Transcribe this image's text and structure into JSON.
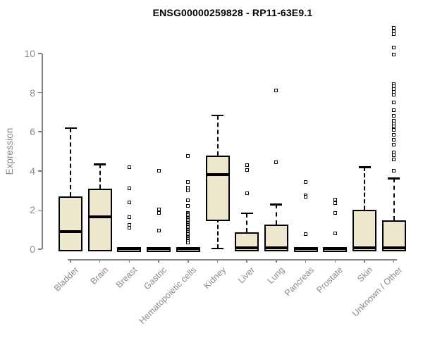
{
  "chart_data": {
    "type": "boxplot",
    "title": "ENSG00000259828 - RP11-63E9.1",
    "ylabel": "Expression",
    "xlabel": "",
    "yticks": [
      0,
      2,
      4,
      6,
      8,
      10
    ],
    "ylim": [
      0,
      11.5
    ],
    "legend": "none",
    "grid": false,
    "categories": [
      {
        "label": "Bladder",
        "box": {
          "q1": 0.05,
          "median": 0.9,
          "q3": 2.7,
          "whisker_low": null,
          "whisker_high": 6.2
        },
        "outliers": []
      },
      {
        "label": "Brain",
        "box": {
          "q1": 0.05,
          "median": 1.65,
          "q3": 3.1,
          "whisker_low": null,
          "whisker_high": 4.35
        },
        "outliers": []
      },
      {
        "label": "Breast",
        "box": {
          "q1": 0,
          "median": 0.02,
          "q3": 0.07,
          "whisker_low": null,
          "whisker_high": null
        },
        "outliers": [
          4.2,
          3.1,
          2.4,
          1.65,
          1.25,
          1.1
        ]
      },
      {
        "label": "Gastric",
        "box": {
          "q1": 0,
          "median": 0.02,
          "q3": 0.07,
          "whisker_low": null,
          "whisker_high": null
        },
        "outliers": [
          4.0,
          2.05,
          1.85,
          0.95
        ]
      },
      {
        "label": "Hematopoietic cells",
        "box": {
          "q1": 0,
          "median": 0.02,
          "q3": 0.07,
          "whisker_low": null,
          "whisker_high": null
        },
        "outliers": [
          4.75,
          3.45,
          3.15,
          3.0,
          2.5,
          2.2,
          1.87,
          1.8,
          1.73,
          1.66,
          1.6,
          1.54,
          1.48,
          1.42,
          1.36,
          1.3,
          1.24,
          1.18,
          1.12,
          1.06,
          1.0,
          0.94,
          0.88,
          0.82,
          0.76,
          0.7,
          0.64,
          0.58,
          0.52,
          0.46,
          0.4,
          0.34
        ]
      },
      {
        "label": "Kidney",
        "box": {
          "q1": 1.6,
          "median": 3.8,
          "q3": 4.8,
          "whisker_low": 0.05,
          "whisker_high": 6.85
        },
        "outliers": []
      },
      {
        "label": "Liver",
        "box": {
          "q1": 0.03,
          "median": 0.06,
          "q3": 0.88,
          "whisker_low": null,
          "whisker_high": 1.85
        },
        "outliers": [
          4.3,
          4.05,
          2.85
        ]
      },
      {
        "label": "Lung",
        "box": {
          "q1": 0.03,
          "median": 0.06,
          "q3": 1.27,
          "whisker_low": null,
          "whisker_high": 2.3
        },
        "outliers": [
          8.1,
          4.45
        ]
      },
      {
        "label": "Pancreas",
        "box": {
          "q1": 0,
          "median": 0.02,
          "q3": 0.07,
          "whisker_low": null,
          "whisker_high": null
        },
        "outliers": [
          3.45,
          2.75,
          2.68,
          0.78
        ]
      },
      {
        "label": "Prostate",
        "box": {
          "q1": 0,
          "median": 0.02,
          "q3": 0.07,
          "whisker_low": null,
          "whisker_high": null
        },
        "outliers": [
          2.55,
          2.37,
          1.85,
          0.8
        ]
      },
      {
        "label": "Skin",
        "box": {
          "q1": 0.03,
          "median": 0.07,
          "q3": 2.0,
          "whisker_low": null,
          "whisker_high": 4.2
        },
        "outliers": []
      },
      {
        "label": "Unknown / Other",
        "box": {
          "q1": 0.03,
          "median": 0.06,
          "q3": 1.47,
          "whisker_low": null,
          "whisker_high": 3.63
        },
        "outliers": [
          11.3,
          11.15,
          11.0,
          10.3,
          9.95,
          8.45,
          8.32,
          8.2,
          8.05,
          7.9,
          7.5,
          7.12,
          6.8,
          6.55,
          6.42,
          6.28,
          6.1,
          5.85,
          5.6,
          5.35,
          4.95,
          4.8,
          4.6,
          4.0
        ]
      }
    ],
    "colors": {
      "box_fill": "#EDE8CD",
      "box_border": "#000000",
      "median": "#000000",
      "axis": "#808080",
      "tick_text": "#8a8a8a",
      "title": "#000000",
      "background": "#ffffff"
    }
  }
}
